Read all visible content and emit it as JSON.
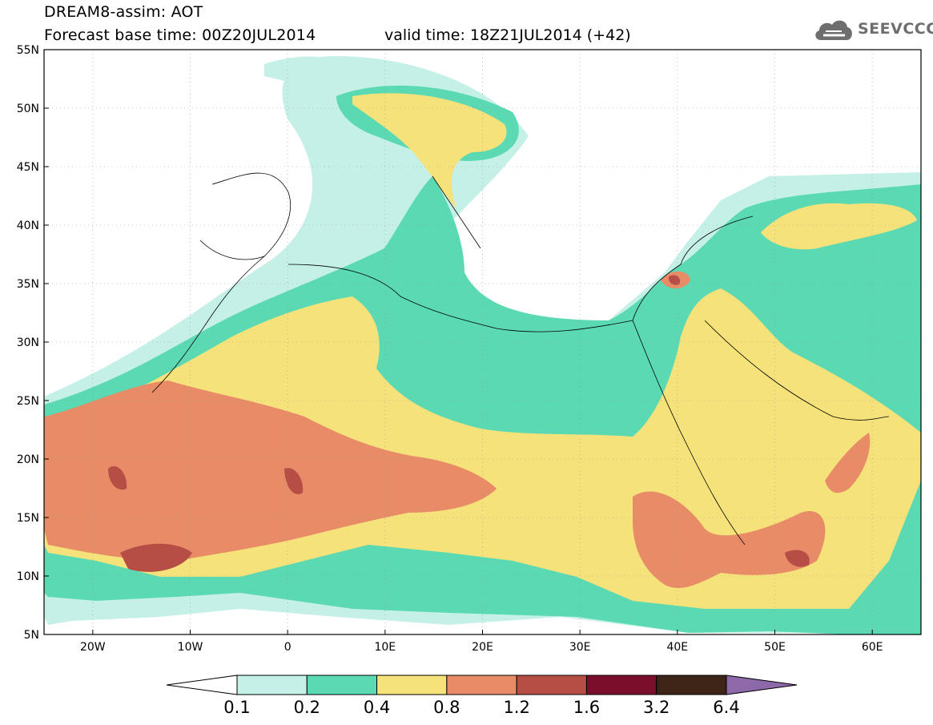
{
  "header": {
    "title": "DREAM8-assim: AOT",
    "base_time": "Forecast base time: 00Z20JUL2014",
    "valid_time": "valid time: 18Z21JUL2014 (+42)"
  },
  "logo": {
    "text": "SEEVCCC",
    "icon": "cloud-icon",
    "color": "#6e6e6e"
  },
  "map": {
    "lon_range": [
      -25,
      65
    ],
    "lat_range": [
      5,
      55
    ],
    "lat_ticks": [
      "55N",
      "50N",
      "45N",
      "40N",
      "35N",
      "30N",
      "25N",
      "20N",
      "15N",
      "10N",
      "5N"
    ],
    "lon_ticks": [
      "20W",
      "10W",
      "0",
      "10E",
      "20E",
      "30E",
      "40E",
      "50E",
      "60E"
    ],
    "grid": true
  },
  "colorbar": {
    "labels": [
      "0.1",
      "0.2",
      "0.4",
      "0.8",
      "1.2",
      "1.6",
      "3.2",
      "6.4"
    ],
    "colors": [
      "#ffffff",
      "#c4f0e8",
      "#5ad9b2",
      "#f6e27a",
      "#e88c68",
      "#b74e45",
      "#7b0f2b",
      "#3c2417",
      "#8e69aa"
    ]
  }
}
